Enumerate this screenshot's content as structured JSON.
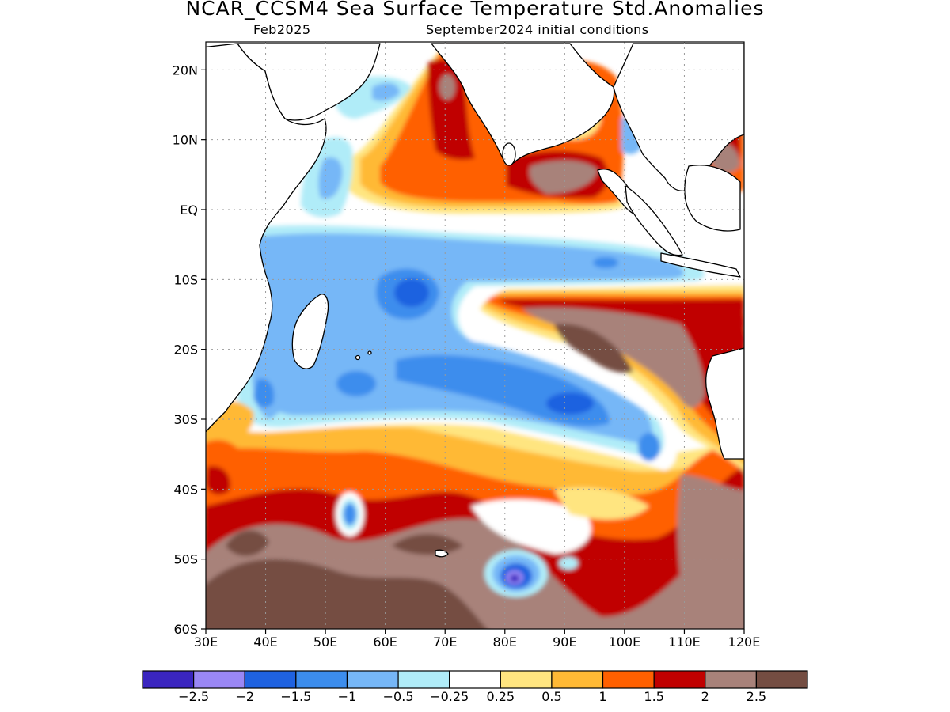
{
  "title": "NCAR_CCSM4 Sea Surface Temperature Std.Anomalies",
  "subtitle_left": "Feb2025",
  "subtitle_right": "September2024 initial conditions",
  "map": {
    "lon_range": [
      30,
      120
    ],
    "lat_range": [
      -60,
      24
    ],
    "grid": true,
    "lat_ticks": [
      {
        "value": 20,
        "label": "20N"
      },
      {
        "value": 10,
        "label": "10N"
      },
      {
        "value": 0,
        "label": "EQ"
      },
      {
        "value": -10,
        "label": "10S"
      },
      {
        "value": -20,
        "label": "20S"
      },
      {
        "value": -30,
        "label": "30S"
      },
      {
        "value": -40,
        "label": "40S"
      },
      {
        "value": -50,
        "label": "50S"
      },
      {
        "value": -60,
        "label": "60S"
      }
    ],
    "lon_ticks": [
      {
        "value": 30,
        "label": "30E"
      },
      {
        "value": 40,
        "label": "40E"
      },
      {
        "value": 50,
        "label": "50E"
      },
      {
        "value": 60,
        "label": "60E"
      },
      {
        "value": 70,
        "label": "70E"
      },
      {
        "value": 80,
        "label": "80E"
      },
      {
        "value": 90,
        "label": "90E"
      },
      {
        "value": 100,
        "label": "100E"
      },
      {
        "value": 110,
        "label": "110E"
      },
      {
        "value": 120,
        "label": "120E"
      }
    ]
  },
  "colorbar": {
    "colors": [
      "#3a25bf",
      "#9a87f5",
      "#1f62e0",
      "#3c8ded",
      "#76b7f7",
      "#b0ecf8",
      "#ffffff",
      "#ffe580",
      "#ffb935",
      "#ff6000",
      "#c00000",
      "#a8827a",
      "#744d42"
    ],
    "labels": [
      "−2.5",
      "−2",
      "−1.5",
      "−1",
      "−0.5",
      "−0.25",
      "0.25",
      "0.5",
      "1",
      "1.5",
      "2",
      "2.5"
    ]
  },
  "anomaly_regions": [
    {
      "name": "south-band-warm",
      "level": 1.0
    },
    {
      "name": "southern-ocean-strong-warm",
      "level": 2.5
    },
    {
      "name": "southwest-australia-warm",
      "level": 2.0
    },
    {
      "name": "southeast-indian-ocean-warm",
      "level": 2.5
    },
    {
      "name": "bay-of-bengal-warm",
      "level": 2.0
    },
    {
      "name": "arabian-sea-warm",
      "level": 1.5
    },
    {
      "name": "south-china-sea-warm",
      "level": 2.5
    },
    {
      "name": "equatorial-indian-ocean-cool",
      "level": -0.5
    },
    {
      "name": "central-south-indian-cool",
      "level": -1.5
    },
    {
      "name": "south-of-kerguelen-cold",
      "level": -2.5
    }
  ]
}
